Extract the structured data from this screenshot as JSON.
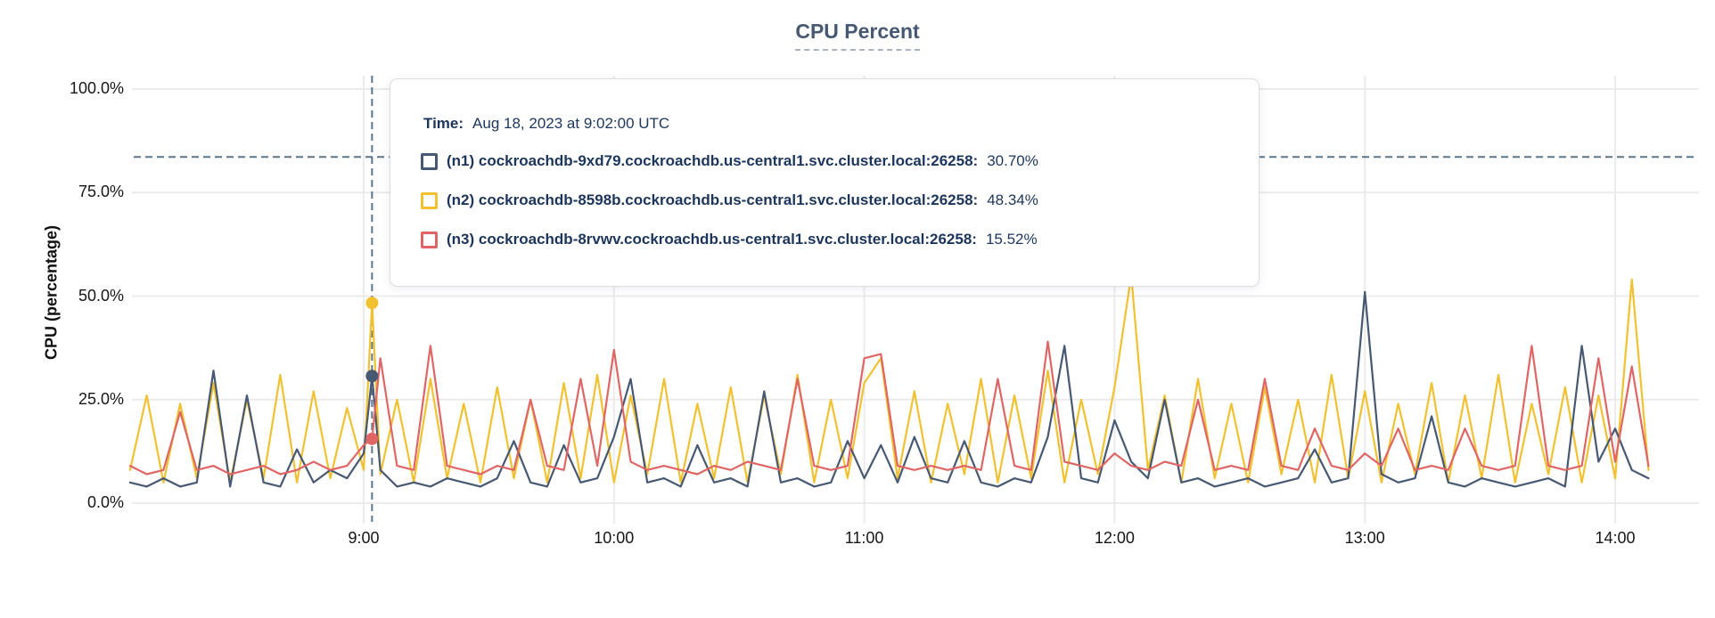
{
  "title": "CPU Percent",
  "y_axis": {
    "label": "CPU (percentage)",
    "ticks": [
      "100.0%",
      "75.0%",
      "50.0%",
      "25.0%",
      "0.0%"
    ]
  },
  "x_axis": {
    "ticks": [
      "9:00",
      "10:00",
      "11:00",
      "12:00",
      "13:00",
      "14:00"
    ]
  },
  "tooltip": {
    "time_label": "Time:",
    "time_value": "Aug 18, 2023 at 9:02:00 UTC",
    "rows": [
      {
        "name": "(n1) cockroachdb-9xd79.cockroachdb.us-central1.svc.cluster.local:26258:",
        "value": "30.70%",
        "color": "#475872"
      },
      {
        "name": "(n2) cockroachdb-8598b.cockroachdb.us-central1.svc.cluster.local:26258:",
        "value": "48.34%",
        "color": "#f1c12f"
      },
      {
        "name": "(n3) cockroachdb-8rvwv.cockroachdb.us-central1.svc.cluster.local:26258:",
        "value": "15.52%",
        "color": "#e06565"
      }
    ]
  },
  "chart_data": {
    "type": "line",
    "title": "CPU Percent",
    "ylabel": "CPU (percentage)",
    "xlabel": "",
    "ylim": [
      0,
      100
    ],
    "grid": true,
    "x_unit": "minutes after 8:00 UTC, Aug 18 2023",
    "x": [
      4,
      8,
      12,
      16,
      20,
      24,
      28,
      32,
      36,
      40,
      44,
      48,
      52,
      56,
      60,
      62,
      64,
      68,
      72,
      76,
      80,
      84,
      88,
      92,
      96,
      100,
      104,
      108,
      112,
      116,
      120,
      124,
      128,
      132,
      136,
      140,
      144,
      148,
      152,
      156,
      160,
      164,
      168,
      172,
      176,
      180,
      184,
      188,
      192,
      196,
      200,
      204,
      208,
      212,
      216,
      220,
      224,
      228,
      232,
      236,
      240,
      244,
      248,
      252,
      256,
      260,
      264,
      268,
      272,
      276,
      280,
      284,
      288,
      292,
      296,
      300,
      304,
      308,
      312,
      316,
      320,
      324,
      328,
      332,
      336,
      340,
      344,
      348,
      352,
      356,
      360,
      364,
      368
    ],
    "series": [
      {
        "name": "(n1) cockroachdb-9xd79.cockroachdb.us-central1.svc.cluster.local:26258",
        "color": "#475872",
        "values": [
          5,
          4,
          6,
          4,
          5,
          32,
          4,
          26,
          5,
          4,
          13,
          5,
          8,
          6,
          12,
          30.7,
          8,
          4,
          5,
          4,
          6,
          5,
          4,
          6,
          15,
          5,
          4,
          14,
          5,
          6,
          16,
          30,
          5,
          6,
          4,
          14,
          5,
          6,
          4,
          27,
          5,
          6,
          4,
          5,
          15,
          6,
          14,
          5,
          16,
          6,
          5,
          15,
          5,
          4,
          6,
          5,
          16,
          38,
          6,
          5,
          20,
          10,
          6,
          25,
          5,
          6,
          4,
          5,
          6,
          4,
          5,
          6,
          13,
          5,
          6,
          51,
          7,
          5,
          6,
          21,
          5,
          4,
          6,
          5,
          4,
          5,
          6,
          4,
          38,
          10,
          18,
          8,
          6
        ]
      },
      {
        "name": "(n2) cockroachdb-8598b.cockroachdb.us-central1.svc.cluster.local:26258",
        "color": "#f1c12f",
        "values": [
          8,
          26,
          5,
          24,
          6,
          29,
          5,
          25,
          6,
          31,
          5,
          27,
          6,
          23,
          8,
          48.34,
          7,
          25,
          5,
          30,
          6,
          24,
          5,
          28,
          6,
          25,
          5,
          29,
          6,
          31,
          5,
          26,
          7,
          30,
          5,
          24,
          6,
          28,
          5,
          26,
          7,
          31,
          5,
          25,
          6,
          29,
          35,
          6,
          27,
          5,
          24,
          7,
          30,
          5,
          26,
          6,
          32,
          5,
          25,
          7,
          28,
          55,
          8,
          26,
          5,
          30,
          6,
          24,
          5,
          28,
          7,
          25,
          5,
          31,
          6,
          27,
          5,
          24,
          7,
          29,
          5,
          26,
          6,
          31,
          5,
          24,
          7,
          28,
          5,
          26,
          6,
          54,
          8
        ]
      },
      {
        "name": "(n3) cockroachdb-8rvwv.cockroachdb.us-central1.svc.cluster.local:26258",
        "color": "#e06565",
        "values": [
          9,
          7,
          8,
          22,
          8,
          9,
          7,
          8,
          9,
          7,
          8,
          10,
          8,
          9,
          14,
          15.52,
          35,
          9,
          8,
          38,
          9,
          8,
          7,
          9,
          8,
          25,
          9,
          8,
          30,
          9,
          37,
          10,
          8,
          9,
          8,
          7,
          9,
          8,
          10,
          9,
          8,
          30,
          9,
          8,
          9,
          35,
          36,
          9,
          8,
          9,
          8,
          9,
          8,
          30,
          9,
          8,
          39,
          10,
          9,
          8,
          12,
          9,
          8,
          10,
          9,
          25,
          8,
          9,
          8,
          30,
          9,
          8,
          18,
          9,
          8,
          12,
          9,
          18,
          8,
          9,
          8,
          18,
          9,
          8,
          9,
          38,
          9,
          8,
          9,
          35,
          10,
          33,
          9
        ]
      }
    ],
    "xtick_minutes": [
      60,
      120,
      180,
      240,
      300,
      360
    ],
    "xtick_labels": [
      "9:00",
      "10:00",
      "11:00",
      "12:00",
      "13:00",
      "14:00"
    ],
    "ytick_values": [
      0,
      25,
      50,
      75,
      100
    ],
    "ytick_labels": [
      "0.0%",
      "25.0%",
      "50.0%",
      "75.0%",
      "100.0%"
    ],
    "legend_position": "tooltip-overlay",
    "hover": {
      "x_minute": 62,
      "time": "Aug 18, 2023 at 9:02:00 UTC",
      "crosshair_percent": 83.6,
      "marker_values": [
        30.7,
        48.34,
        15.52
      ]
    }
  }
}
